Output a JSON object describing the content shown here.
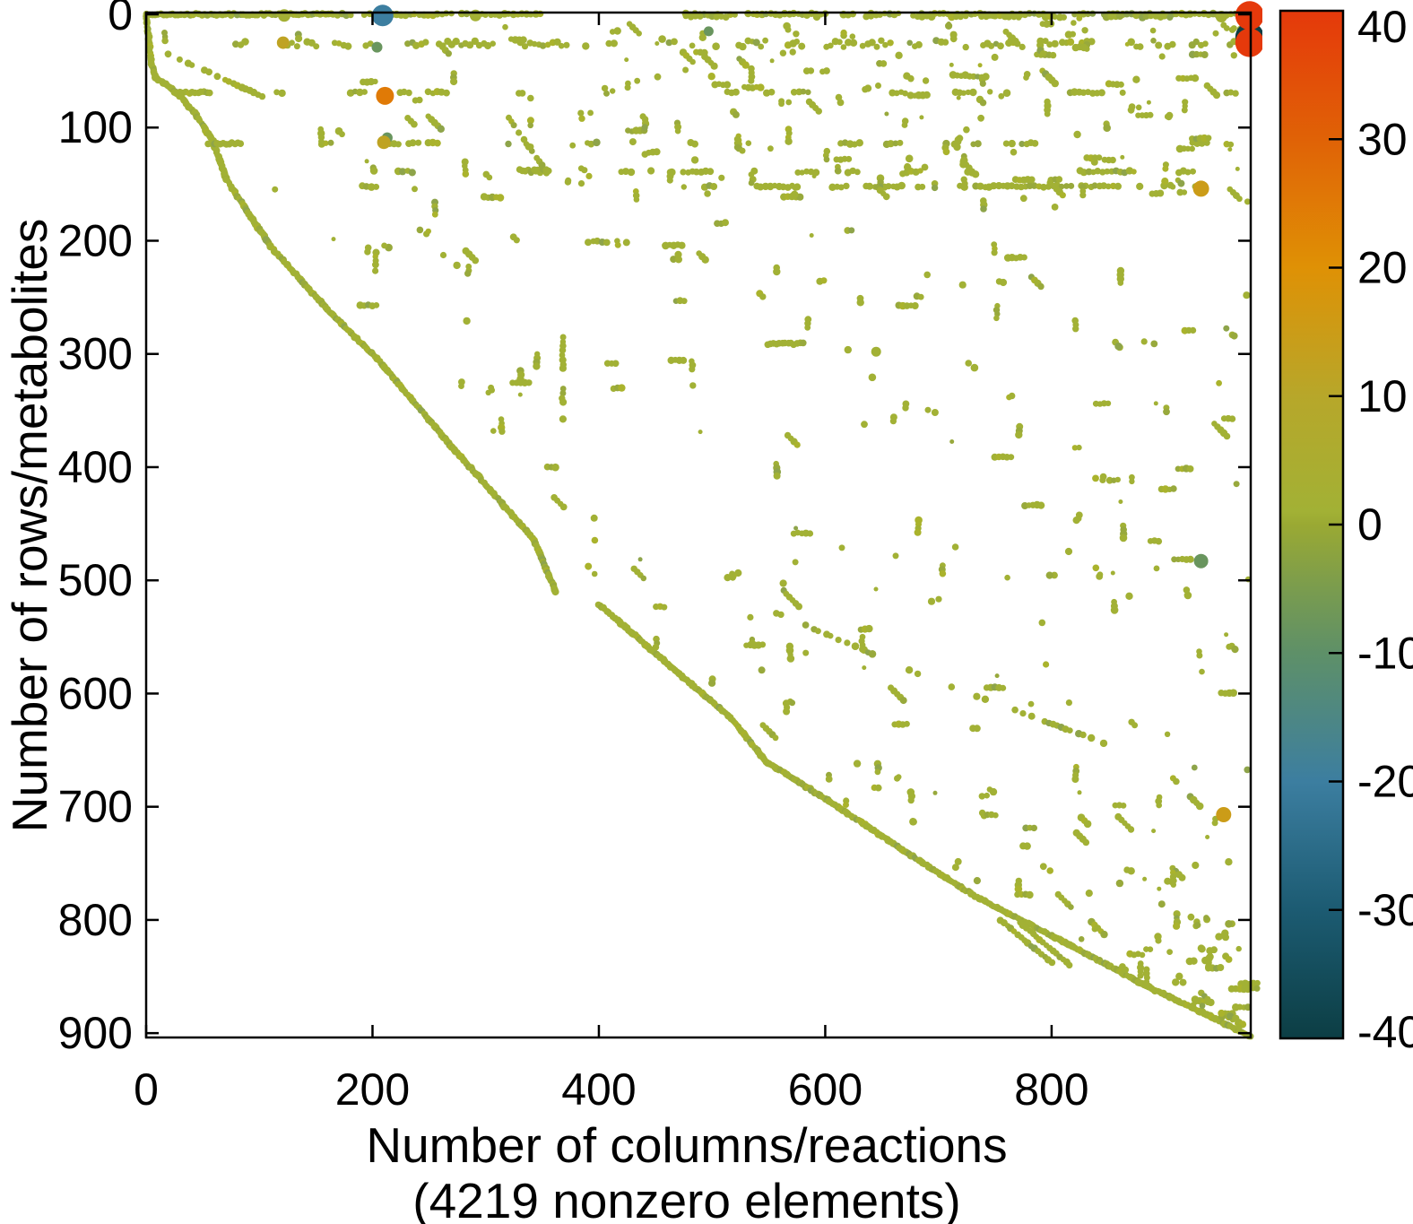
{
  "chart_data": {
    "type": "scatter",
    "subtype": "sparse-matrix-spy-plot",
    "xlabel": "Number of columns/reactions",
    "xlabel_line2": "(4219 nonzero elements)",
    "ylabel": "Number of rows/metabolites",
    "nonzero_elements": 4219,
    "x_ticks": [
      0,
      200,
      400,
      600,
      800
    ],
    "y_ticks": [
      0,
      100,
      200,
      300,
      400,
      500,
      600,
      700,
      800,
      900
    ],
    "xlim": [
      0,
      976
    ],
    "ylim": [
      0,
      903
    ],
    "y_axis_inverted": true,
    "grid": false,
    "legend": "colorbar-right",
    "marker_color_default": "#a2b135",
    "marker_color_variants": [
      "#98a93c",
      "#aab32c",
      "#8ea44a"
    ],
    "colorbar": {
      "min": -40,
      "max": 40,
      "tick_labels": [
        "40",
        "30",
        "20",
        "10",
        "0",
        "-10",
        "-20",
        "-30",
        "-40"
      ],
      "tick_values": [
        40,
        30,
        20,
        10,
        0,
        -10,
        -20,
        -30,
        -40
      ],
      "gradient_stops": [
        {
          "value": 40,
          "color": "#e5390b"
        },
        {
          "value": 30,
          "color": "#e06206"
        },
        {
          "value": 20,
          "color": "#df9105"
        },
        {
          "value": 10,
          "color": "#b7a72a"
        },
        {
          "value": 1,
          "color": "#a2b135"
        },
        {
          "value": 0,
          "color": "#9aa933"
        },
        {
          "value": -5,
          "color": "#7a9c4e"
        },
        {
          "value": -10,
          "color": "#5e9068"
        },
        {
          "value": -20,
          "color": "#3c7ea0"
        },
        {
          "value": -30,
          "color": "#1c5b72"
        },
        {
          "value": -40,
          "color": "#0c3e44"
        }
      ]
    },
    "notable_points": [
      {
        "col": 975,
        "row": 20,
        "value": -40,
        "radius": 16
      },
      {
        "col": 122,
        "row": 1,
        "value": 2,
        "radius": 7
      },
      {
        "col": 291,
        "row": 1,
        "value": 2,
        "radius": 6.5
      },
      {
        "col": 950,
        "row": 2,
        "value": 2,
        "radius": 6.5
      },
      {
        "col": 209,
        "row": 1,
        "value": -20,
        "radius": 12
      },
      {
        "col": 975,
        "row": 1,
        "value": 40,
        "radius": 16
      },
      {
        "col": 975,
        "row": 25,
        "value": 40,
        "radius": 16
      },
      {
        "col": 121,
        "row": 25,
        "value": 12,
        "radius": 7
      },
      {
        "col": 204,
        "row": 29,
        "value": -8,
        "radius": 6
      },
      {
        "col": 497,
        "row": 15,
        "value": -8,
        "radius": 5.5
      },
      {
        "col": 211,
        "row": 72,
        "value": 25,
        "radius": 10
      },
      {
        "col": 213,
        "row": 109,
        "value": -8,
        "radius": 6
      },
      {
        "col": 210,
        "row": 113,
        "value": 12,
        "radius": 7.5
      },
      {
        "col": 932,
        "row": 154,
        "value": 15,
        "radius": 9
      },
      {
        "col": 932,
        "row": 483,
        "value": -8,
        "radius": 8
      },
      {
        "col": 952,
        "row": 707,
        "value": 15,
        "radius": 8.5
      },
      {
        "col": 645,
        "row": 298,
        "value": 1,
        "radius": 5.5
      }
    ],
    "diagonal_paths": [
      [
        [
          0,
          0
        ],
        [
          4,
          40
        ],
        [
          8,
          56
        ],
        [
          20,
          64
        ],
        [
          30,
          72
        ],
        [
          45,
          90
        ],
        [
          59,
          112
        ],
        [
          71,
          146
        ],
        [
          110,
          205
        ],
        [
          164,
          265
        ],
        [
          204,
          304
        ],
        [
          271,
          383
        ],
        [
          342,
          463
        ],
        [
          362,
          510
        ]
      ],
      [
        [
          400,
          521
        ],
        [
          469,
          581
        ],
        [
          516,
          621
        ],
        [
          548,
          660
        ],
        [
          611,
          700
        ],
        [
          671,
          740
        ],
        [
          734,
          780
        ],
        [
          810,
          819
        ],
        [
          885,
          859
        ],
        [
          940,
          885
        ],
        [
          976,
          903
        ]
      ]
    ],
    "structure_runs": [
      {
        "type": "h",
        "row": 69,
        "c0": 25,
        "c1": 58,
        "solid": true
      },
      {
        "type": "h",
        "row": 114,
        "c0": 55,
        "c1": 86,
        "solid": true
      },
      {
        "type": "h",
        "row": 138,
        "c0": 330,
        "c1": 357,
        "solid": true
      },
      {
        "type": "h",
        "row": 291,
        "c0": 549,
        "c1": 582,
        "solid": true
      },
      {
        "type": "h",
        "row": 201,
        "c0": 362,
        "c1": 425,
        "density": 0.5
      },
      {
        "type": "d",
        "from": [
          19,
          35
        ],
        "to": [
          106,
          74
        ],
        "density": 0.55
      },
      {
        "type": "d",
        "from": [
          318,
          88
        ],
        "to": [
          354,
          140
        ],
        "density": 0.85
      },
      {
        "type": "d",
        "from": [
          546,
          524
        ],
        "to": [
          700,
          590
        ],
        "density": 0.4
      },
      {
        "type": "d",
        "from": [
          700,
          590
        ],
        "to": [
          850,
          645
        ],
        "density": 0.35
      },
      {
        "type": "d",
        "from": [
          755,
          800
        ],
        "to": [
          800,
          838
        ],
        "density": 0.9
      },
      {
        "type": "d",
        "from": [
          772,
          802
        ],
        "to": [
          816,
          840
        ],
        "density": 0.9
      },
      {
        "type": "v",
        "col": 368,
        "r0": 285,
        "r1": 360,
        "density": 0.7
      },
      {
        "type": "v",
        "col": 396,
        "r0": 390,
        "r1": 505,
        "density": 0.45
      },
      {
        "type": "v",
        "col": 340,
        "r0": 60,
        "r1": 140,
        "density": 0.35
      },
      {
        "type": "v",
        "col": 973,
        "r0": 60,
        "r1": 895,
        "density": 0.08
      }
    ],
    "row_bands": [
      {
        "row": 0,
        "c0": 0,
        "c1": 165,
        "density": 1.0,
        "solid": true
      },
      {
        "row": 0,
        "c0": 165,
        "c1": 360,
        "density": 0.8
      },
      {
        "row": 0,
        "c0": 477,
        "c1": 975,
        "density": 0.85
      },
      {
        "row": 2,
        "c0": 477,
        "c1": 975,
        "density": 0.25
      },
      {
        "row": 26,
        "c0": 65,
        "c1": 470,
        "density": 0.45,
        "spread": 5
      },
      {
        "row": 26,
        "c0": 470,
        "c1": 975,
        "density": 0.55,
        "spread": 6
      },
      {
        "row": 69,
        "c0": 60,
        "c1": 975,
        "density": 0.2
      },
      {
        "row": 114,
        "c0": 90,
        "c1": 975,
        "density": 0.18
      },
      {
        "row": 139,
        "c0": 200,
        "c1": 930,
        "density": 0.24
      },
      {
        "row": 152,
        "c0": 105,
        "c1": 205,
        "density": 0.4
      },
      {
        "row": 152,
        "c0": 460,
        "c1": 940,
        "density": 0.5
      }
    ],
    "random_scatter": {
      "seed": 1234567,
      "clusters": 295,
      "upper_right_clusters": 120
    }
  }
}
